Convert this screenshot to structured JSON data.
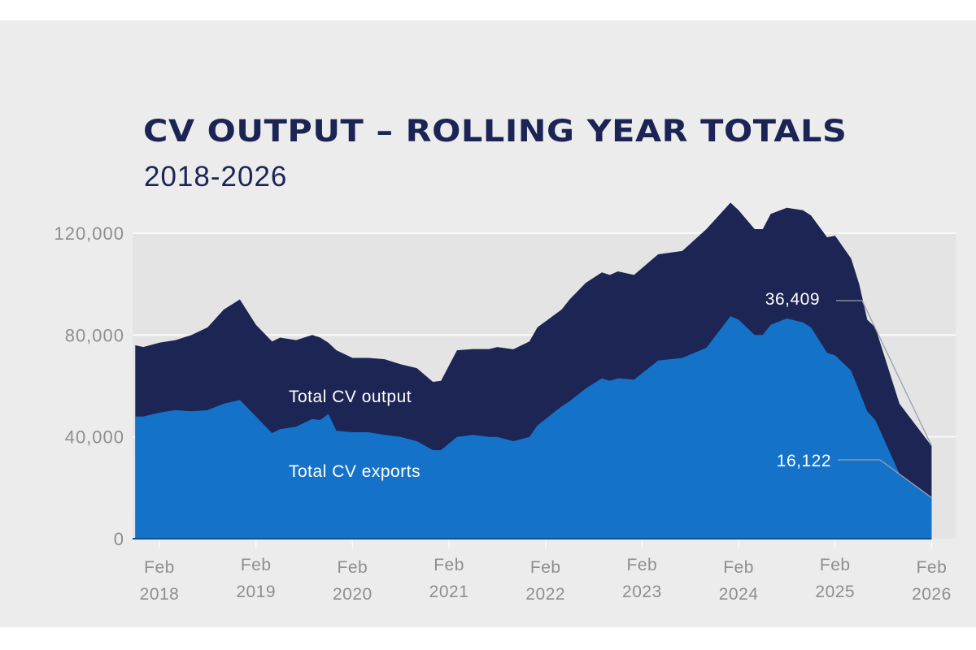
{
  "chart_data": {
    "type": "area",
    "title": "CV OUTPUT – ROLLING YEAR TOTALS",
    "subtitle": "2018-2026",
    "xlabel": "",
    "ylabel": "",
    "ylim": [
      0,
      120000
    ],
    "yticks": [
      "0",
      "40,000",
      "80,000",
      "120,000"
    ],
    "ytick_values": [
      0,
      40000,
      80000,
      120000
    ],
    "xticks": [
      {
        "line1": "Feb",
        "line2": "2018",
        "date": "2018-02"
      },
      {
        "line1": "Feb",
        "line2": "2019",
        "date": "2019-02"
      },
      {
        "line1": "Feb",
        "line2": "2020",
        "date": "2020-02"
      },
      {
        "line1": "Feb",
        "line2": "2021",
        "date": "2021-02"
      },
      {
        "line1": "Feb",
        "line2": "2022",
        "date": "2022-02"
      },
      {
        "line1": "Feb",
        "line2": "2023",
        "date": "2023-02"
      },
      {
        "line1": "Feb",
        "line2": "2024",
        "date": "2024-02"
      },
      {
        "line1": "Feb",
        "line2": "2025",
        "date": "2025-02"
      },
      {
        "line1": "Feb",
        "line2": "2026",
        "date": "2026-02"
      }
    ],
    "grid": true,
    "x": [
      "2017-11",
      "2017-12",
      "2018-02",
      "2018-04",
      "2018-06",
      "2018-08",
      "2018-10",
      "2018-12",
      "2019-02",
      "2019-04",
      "2019-05",
      "2019-07",
      "2019-09",
      "2019-10",
      "2019-11",
      "2019-12",
      "2020-02",
      "2020-04",
      "2020-06",
      "2020-08",
      "2020-10",
      "2020-12",
      "2021-01",
      "2021-03",
      "2021-05",
      "2021-07",
      "2021-08",
      "2021-10",
      "2021-12",
      "2022-01",
      "2022-04",
      "2022-05",
      "2022-07",
      "2022-09",
      "2022-10",
      "2022-11",
      "2023-01",
      "2023-04",
      "2023-07",
      "2023-10",
      "2024-01",
      "2024-02",
      "2024-04",
      "2024-05",
      "2024-06",
      "2024-08",
      "2024-10",
      "2024-11",
      "2025-01",
      "2025-02",
      "2025-04",
      "2025-05",
      "2025-06",
      "2025-07",
      "2025-10",
      "2026-02"
    ],
    "series": [
      {
        "name": "Total CV output",
        "color": "#1d2554",
        "values": [
          76000,
          75300,
          77000,
          78000,
          80000,
          83000,
          90000,
          94000,
          84000,
          77500,
          79000,
          78000,
          80000,
          79000,
          77000,
          74000,
          71000,
          71000,
          70500,
          68500,
          67000,
          61600,
          62000,
          74000,
          74500,
          74500,
          75300,
          74400,
          77500,
          83000,
          90000,
          94000,
          100500,
          104600,
          103600,
          105000,
          103600,
          111700,
          113000,
          121600,
          132000,
          129000,
          121600,
          121600,
          127600,
          130000,
          129000,
          127000,
          118400,
          119000,
          110000,
          100000,
          86000,
          83000,
          53000,
          36409
        ]
      },
      {
        "name": "Total CV exports",
        "color": "#1473c9",
        "values": [
          48000,
          48000,
          49500,
          50500,
          50000,
          50500,
          53000,
          54500,
          48000,
          41500,
          43000,
          44000,
          47000,
          46600,
          49000,
          42400,
          41800,
          41800,
          40800,
          40000,
          38300,
          34800,
          34800,
          40000,
          40800,
          40000,
          40000,
          38300,
          40000,
          44500,
          52000,
          54000,
          59000,
          63000,
          62000,
          63000,
          62500,
          70000,
          71000,
          75000,
          87400,
          86000,
          80000,
          80000,
          84000,
          86500,
          85000,
          83000,
          73000,
          72000,
          66000,
          58000,
          50000,
          46600,
          25500,
          16122
        ]
      }
    ],
    "annotations": [
      {
        "text": "36,409",
        "series": "Total CV output",
        "date": "2026-02"
      },
      {
        "text": "16,122",
        "series": "Total CV exports",
        "date": "2026-02"
      }
    ]
  }
}
